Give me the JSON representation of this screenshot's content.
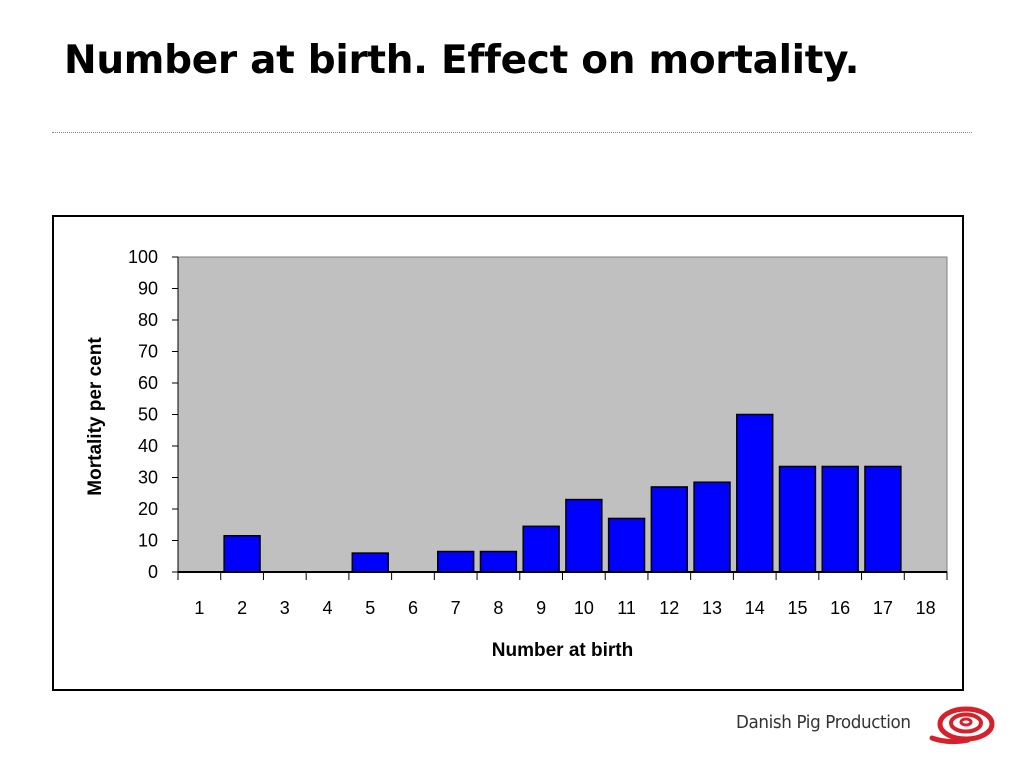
{
  "slide": {
    "title": "Number at birth. Effect on mortality."
  },
  "brand": {
    "name": "Danish Pig Production",
    "logo_color": "#d6202a"
  },
  "chart_data": {
    "type": "bar",
    "xlabel": "Number at birth",
    "ylabel": "Mortality per cent",
    "categories": [
      "1",
      "2",
      "3",
      "4",
      "5",
      "6",
      "7",
      "8",
      "9",
      "10",
      "11",
      "12",
      "13",
      "14",
      "15",
      "16",
      "17",
      "18"
    ],
    "values": [
      0,
      11.5,
      0,
      0,
      6,
      0,
      6.5,
      6.5,
      14.5,
      23,
      17,
      27,
      28.5,
      50,
      33.5,
      33.5,
      33.5,
      0
    ],
    "ylim": [
      0,
      100
    ],
    "yticks": [
      0,
      10,
      20,
      30,
      40,
      50,
      60,
      70,
      80,
      90,
      100
    ],
    "grid": false,
    "colors": {
      "bar": "#0000ff",
      "plot_background": "#c0c0c0"
    }
  }
}
